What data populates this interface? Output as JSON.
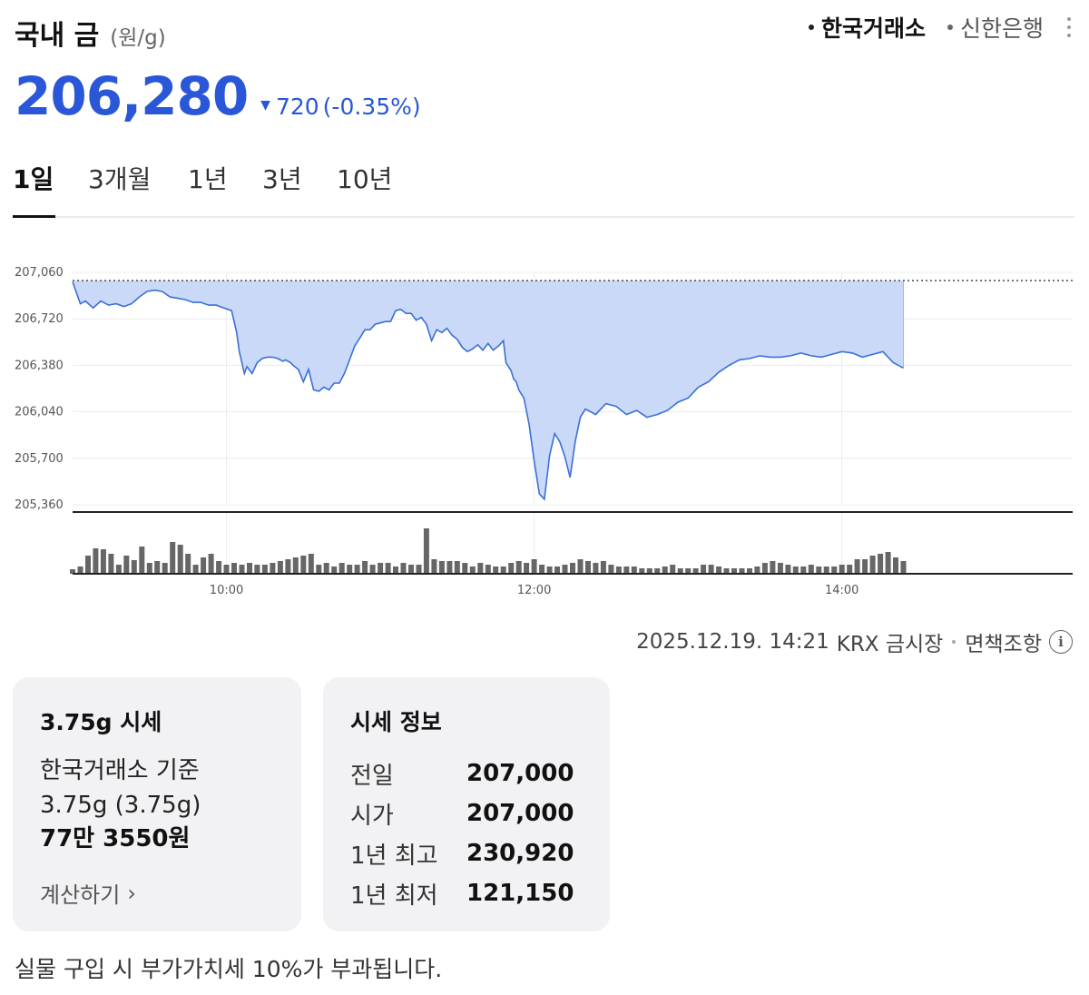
{
  "header": {
    "title": "국내 금",
    "unit": "(원/g)",
    "sources": [
      {
        "label": "한국거래소",
        "active": true
      },
      {
        "label": "신한은행",
        "active": false
      }
    ],
    "more_icon": "more-vertical-icon"
  },
  "price": {
    "current": "206,280",
    "change_icon": "down-triangle-icon",
    "change": "720",
    "change_pct": "(-0.35%)",
    "color": "#2a57d8"
  },
  "tabs": [
    "1일",
    "3개월",
    "1년",
    "3년",
    "10년"
  ],
  "active_tab": 0,
  "chart_data": {
    "type": "area",
    "ylim": [
      205360,
      207060
    ],
    "yticks": [
      "207,060",
      "206,720",
      "206,380",
      "206,040",
      "205,700",
      "205,360"
    ],
    "ytick_values": [
      207060,
      206720,
      206380,
      206040,
      205700,
      205360
    ],
    "xticks": [
      "10:00",
      "12:00",
      "14:00"
    ],
    "xtick_minutes": [
      600,
      720,
      840
    ],
    "xlim_minutes": [
      540,
      930
    ],
    "reference_value": 207000,
    "line_color": "#3b6fd8",
    "fill_color": "#c9d9f7",
    "series": [
      {
        "x": [
          540,
          543,
          545,
          548,
          551,
          554,
          557,
          560,
          563,
          566,
          569,
          572,
          575,
          578,
          581,
          584,
          587,
          590,
          593,
          596,
          599,
          602,
          604,
          605,
          607,
          608,
          610,
          612,
          614,
          616,
          618,
          620,
          621,
          622,
          623,
          625,
          626,
          628,
          630,
          632,
          634,
          636,
          638,
          640,
          642,
          644,
          646,
          648,
          650,
          652,
          654,
          656,
          658,
          660,
          662,
          664,
          666,
          668,
          670,
          672,
          674,
          676,
          678,
          680,
          682,
          684,
          686,
          688,
          690,
          692,
          694,
          696,
          698,
          700,
          702,
          704,
          706,
          708,
          709,
          711,
          712,
          713,
          714,
          716,
          718,
          720,
          722,
          724,
          726,
          728,
          730,
          732,
          734,
          736,
          738,
          740,
          744,
          748,
          752,
          756,
          760,
          764,
          768,
          772,
          776,
          780,
          784,
          788,
          792,
          796,
          800,
          804,
          808,
          812,
          816,
          820,
          824,
          828,
          832,
          836,
          840,
          844,
          848,
          852,
          856,
          860,
          864
        ],
        "y": [
          206990,
          206830,
          206850,
          206800,
          206850,
          206820,
          206830,
          206810,
          206830,
          206880,
          206920,
          206930,
          206920,
          206880,
          206870,
          206860,
          206840,
          206840,
          206820,
          206820,
          206800,
          206780,
          206620,
          206480,
          206320,
          206370,
          206320,
          206400,
          206430,
          206440,
          206440,
          206430,
          206420,
          206410,
          206420,
          206400,
          206380,
          206350,
          206260,
          206350,
          206200,
          206190,
          206220,
          206200,
          206250,
          206250,
          206320,
          206420,
          206520,
          206580,
          206640,
          206640,
          206680,
          206690,
          206700,
          206700,
          206780,
          206790,
          206760,
          206760,
          206710,
          206730,
          206680,
          206560,
          206640,
          206620,
          206650,
          206600,
          206570,
          206510,
          206480,
          206500,
          206530,
          206490,
          206540,
          206490,
          206520,
          206560,
          206400,
          206340,
          206280,
          206260,
          206200,
          206140,
          205950,
          205680,
          205440,
          205400,
          205720,
          205880,
          205820,
          205710,
          205560,
          205820,
          206000,
          206060,
          206020,
          206100,
          206080,
          206020,
          206050,
          206000,
          206020,
          206050,
          206110,
          206140,
          206220,
          206260,
          206330,
          206380,
          206420,
          206430,
          206450,
          206440,
          206440,
          206450,
          206470,
          206450,
          206440,
          206460,
          206480,
          206470,
          206440,
          206460,
          206480,
          206400,
          206360
        ]
      }
    ],
    "volume": {
      "x": [
        540,
        543,
        546,
        549,
        552,
        555,
        558,
        561,
        564,
        567,
        570,
        573,
        576,
        579,
        582,
        585,
        588,
        591,
        594,
        597,
        600,
        603,
        606,
        609,
        612,
        615,
        618,
        621,
        624,
        627,
        630,
        633,
        636,
        639,
        642,
        645,
        648,
        651,
        654,
        657,
        660,
        663,
        666,
        669,
        672,
        675,
        678,
        681,
        684,
        687,
        690,
        693,
        696,
        699,
        702,
        705,
        708,
        711,
        714,
        717,
        720,
        723,
        726,
        729,
        732,
        735,
        738,
        741,
        744,
        747,
        750,
        753,
        756,
        759,
        762,
        765,
        768,
        771,
        774,
        777,
        780,
        783,
        786,
        789,
        792,
        795,
        798,
        801,
        804,
        807,
        810,
        813,
        816,
        819,
        822,
        825,
        828,
        831,
        834,
        837,
        840,
        843,
        846,
        849,
        852,
        855,
        858,
        861,
        864
      ],
      "values": [
        5,
        8,
        20,
        28,
        27,
        22,
        10,
        20,
        15,
        30,
        12,
        14,
        12,
        35,
        32,
        22,
        10,
        18,
        22,
        14,
        10,
        12,
        10,
        12,
        10,
        10,
        12,
        14,
        16,
        18,
        20,
        22,
        10,
        12,
        8,
        12,
        10,
        10,
        14,
        10,
        12,
        12,
        8,
        12,
        10,
        10,
        50,
        16,
        14,
        14,
        14,
        12,
        8,
        12,
        10,
        8,
        8,
        12,
        14,
        12,
        16,
        10,
        8,
        8,
        10,
        12,
        16,
        14,
        12,
        14,
        10,
        8,
        8,
        8,
        6,
        6,
        6,
        8,
        10,
        6,
        6,
        6,
        10,
        10,
        8,
        6,
        6,
        6,
        6,
        8,
        12,
        14,
        12,
        10,
        8,
        8,
        10,
        8,
        8,
        8,
        10,
        10,
        16,
        16,
        20,
        22,
        24,
        18,
        14
      ]
    }
  },
  "status": {
    "datetime": "2025.12.19. 14:21",
    "market": "KRX 금시장",
    "disclaimer": "면책조항",
    "info_icon": "info-circle-icon"
  },
  "card_gram": {
    "title": "3.75g 시세",
    "basis": "한국거래소 기준",
    "weight": "3.75g (3.75g)",
    "value": "77만 3550원",
    "calc_label": "계산하기",
    "calc_icon": "chevron-right-icon"
  },
  "card_info": {
    "title": "시세 정보",
    "rows": [
      {
        "label": "전일",
        "value": "207,000"
      },
      {
        "label": "시가",
        "value": "207,000"
      },
      {
        "label": "1년 최고",
        "value": "230,920"
      },
      {
        "label": "1년 최저",
        "value": "121,150"
      }
    ]
  },
  "footer_note": "실물 구입 시 부가가치세 10%가 부과됩니다."
}
